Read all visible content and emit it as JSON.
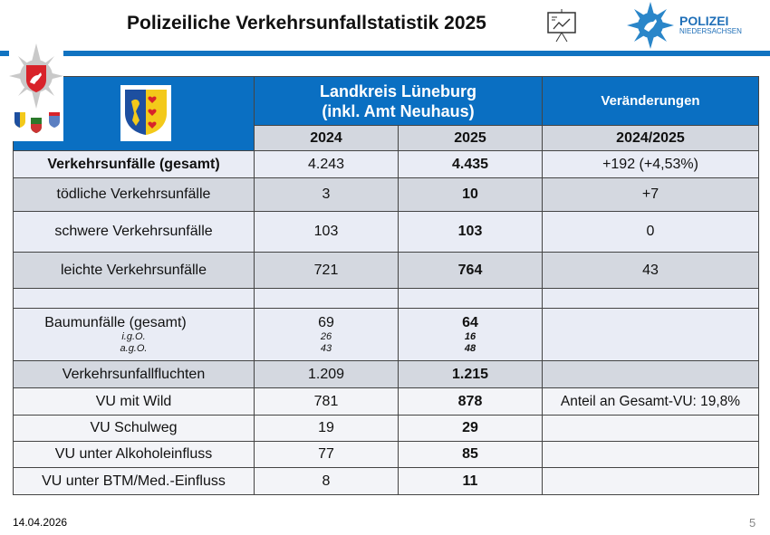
{
  "header": {
    "title": "Polizeiliche Verkehrsunfallstatistik 2025",
    "logo_line1": "POLIZEI",
    "logo_line2": "NIEDERSACHSEN"
  },
  "table": {
    "region_line1": "Landkreis Lüneburg",
    "region_line2": "(inkl. Amt Neuhaus)",
    "changes_header": "Veränderungen",
    "years": [
      "2024",
      "2025",
      "2024/2025"
    ],
    "rows": [
      {
        "label": "Verkehrsunfälle (gesamt)",
        "v2024": "4.243",
        "v2025": "4.435",
        "change": "+192 (+4,53%)"
      },
      {
        "label": "tödliche Verkehrsunfälle",
        "v2024": "3",
        "v2025": "10",
        "change": "+7"
      },
      {
        "label": "schwere Verkehrsunfälle",
        "v2024": "103",
        "v2025": "103",
        "change": "0"
      },
      {
        "label": "leichte Verkehrsunfälle",
        "v2024": "721",
        "v2025": "764",
        "change": "43"
      },
      {
        "label": "",
        "v2024": "",
        "v2025": "",
        "change": ""
      },
      {
        "label": "Baumunfälle (gesamt)",
        "v2024": "69",
        "v2025": "64",
        "change": "",
        "sub": [
          {
            "label": "i.g.O.",
            "v2024": "26",
            "v2025": "16"
          },
          {
            "label": "a.g.O.",
            "v2024": "43",
            "v2025": "48"
          }
        ]
      },
      {
        "label": "Verkehrsunfallfluchten",
        "v2024": "1.209",
        "v2025": "1.215",
        "change": ""
      },
      {
        "label": "VU mit Wild",
        "v2024": "781",
        "v2025": "878",
        "change": "Anteil an Gesamt-VU: 19,8%"
      },
      {
        "label": "VU Schulweg",
        "v2024": "19",
        "v2025": "29",
        "change": ""
      },
      {
        "label": "VU unter Alkoholeinfluss",
        "v2024": "77",
        "v2025": "85",
        "change": ""
      },
      {
        "label": "VU unter BTM/Med.-Einfluss",
        "v2024": "8",
        "v2025": "11",
        "change": ""
      }
    ]
  },
  "footer": {
    "date": "14.04.2026",
    "page": "5"
  }
}
